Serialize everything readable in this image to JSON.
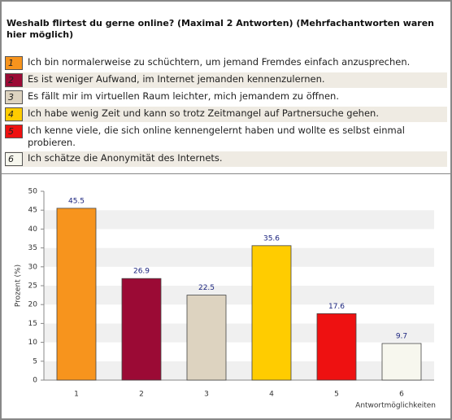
{
  "chart_data": {
    "type": "bar",
    "title": "Weshalb flirtest du gerne online? (Maximal 2 Antworten) (Mehrfachantworten waren hier möglich)",
    "legend": [
      "Ich bin normalerweise zu schüchtern, um jemand Fremdes einfach anzusprechen.",
      "Es ist weniger Aufwand, im Internet jemanden kennenzulernen.",
      "Es fällt mir im virtuellen Raum leichter, mich jemandem zu öffnen.",
      "Ich habe wenig Zeit und kann so trotz Zeitmangel auf Partnersuche gehen.",
      "Ich kenne viele, die sich online kennengelernt haben und wollte es selbst einmal probieren.",
      "Ich schätze die Anonymität des Internets."
    ],
    "categories": [
      "1",
      "2",
      "3",
      "4",
      "5",
      "6"
    ],
    "values": [
      45.5,
      26.9,
      22.5,
      35.6,
      17.6,
      9.7
    ],
    "colors": [
      "#f7941d",
      "#9b0a35",
      "#ddd3c0",
      "#ffcc00",
      "#ee1111",
      "#f7f7ee"
    ],
    "ylabel": "Prozent (%)",
    "xlabel": "Antwortmöglichkeiten",
    "ylim": [
      0,
      50
    ],
    "yticks": [
      0,
      5,
      10,
      15,
      20,
      25,
      30,
      35,
      40,
      45,
      50
    ],
    "grid": true
  }
}
